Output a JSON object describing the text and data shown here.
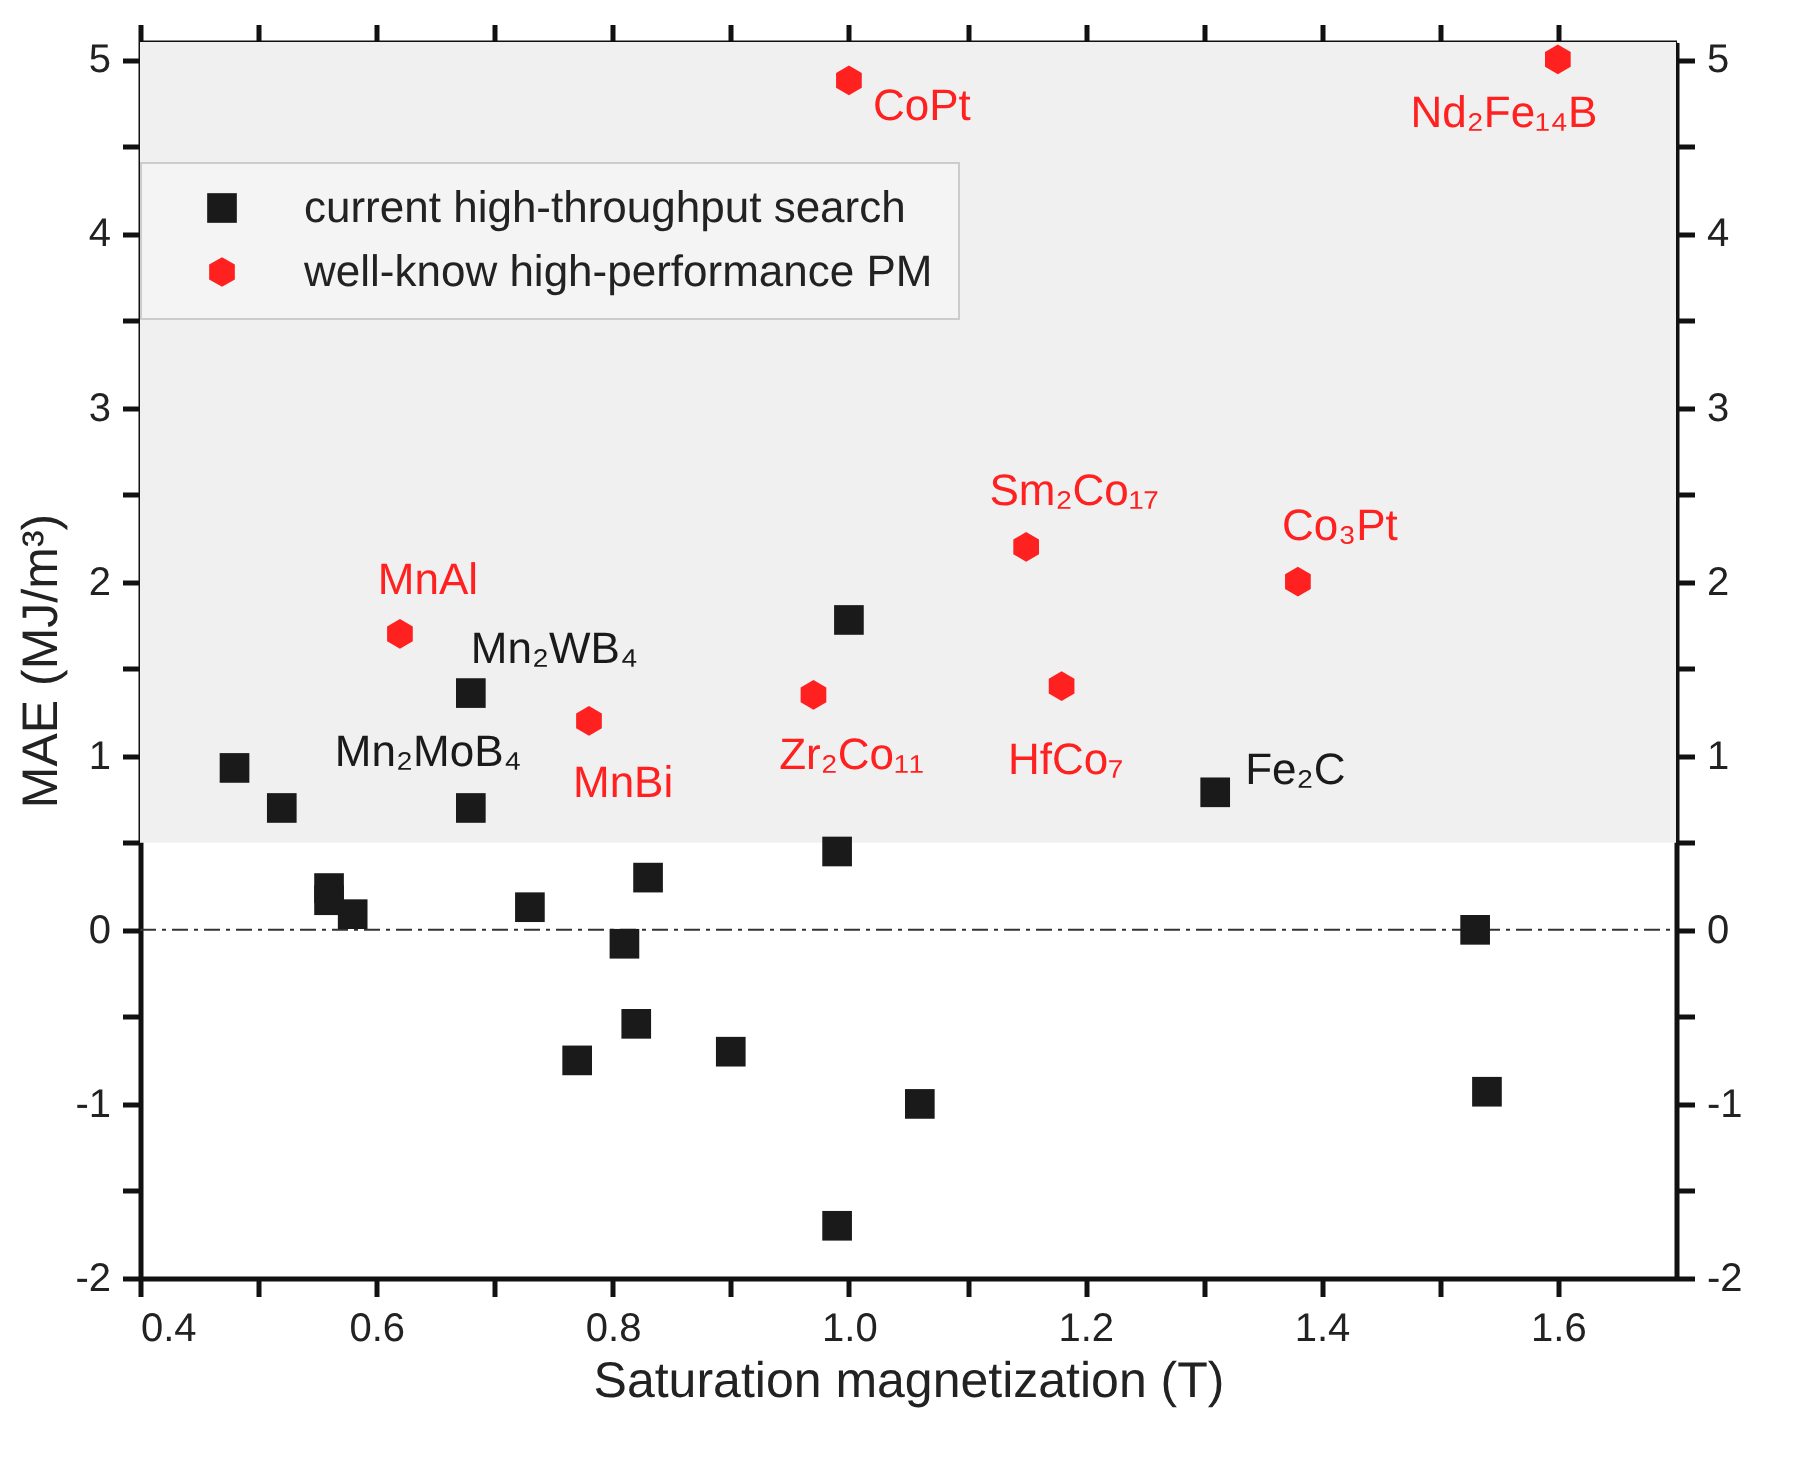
{
  "chart_data": {
    "type": "scatter",
    "xlabel": "Saturation magnetization (T)",
    "ylabel": "MAE (MJ/m³)",
    "xlim": [
      0.4,
      1.7
    ],
    "ylim": [
      -2,
      5.1
    ],
    "y2lim": [
      -2,
      5.1
    ],
    "xticks": [
      {
        "value": 0.4,
        "label": "0.4"
      },
      {
        "value": 0.5,
        "label": null
      },
      {
        "value": 0.6,
        "label": "0.6"
      },
      {
        "value": 0.7,
        "label": null
      },
      {
        "value": 0.8,
        "label": "0.8"
      },
      {
        "value": 0.9,
        "label": null
      },
      {
        "value": 1.0,
        "label": "1.0"
      },
      {
        "value": 1.1,
        "label": null
      },
      {
        "value": 1.2,
        "label": "1.2"
      },
      {
        "value": 1.3,
        "label": null
      },
      {
        "value": 1.4,
        "label": "1.4"
      },
      {
        "value": 1.5,
        "label": null
      },
      {
        "value": 1.6,
        "label": "1.6"
      }
    ],
    "yticks": [
      -2,
      {
        "value": -1.5,
        "label": null
      },
      -1,
      {
        "value": -0.5,
        "label": null
      },
      0,
      {
        "value": 0.5,
        "label": null
      },
      1,
      {
        "value": 1.5,
        "label": null
      },
      2,
      {
        "value": 2.5,
        "label": null
      },
      3,
      {
        "value": 3.5,
        "label": null
      },
      4,
      {
        "value": 4.5,
        "label": null
      },
      5
    ],
    "y2ticks": [
      -2,
      {
        "value": -1.5,
        "label": null
      },
      -1,
      {
        "value": -0.5,
        "label": null
      },
      0,
      {
        "value": 0.5,
        "label": null
      },
      1,
      {
        "value": 1.5,
        "label": null
      },
      2,
      {
        "value": 2.5,
        "label": null
      },
      3,
      {
        "value": 3.5,
        "label": null
      },
      4,
      {
        "value": 4.5,
        "label": null
      },
      5
    ],
    "grid": false,
    "legend": "top left",
    "series": [
      {
        "name": "current high-throughput search",
        "color": "#1a1a1a",
        "marker": "square",
        "x": [
          0.48,
          0.52,
          0.56,
          0.56,
          0.58,
          0.68,
          0.68,
          0.73,
          0.77,
          0.81,
          0.82,
          0.83,
          0.9,
          0.99,
          0.99,
          1.0,
          1.06,
          1.31,
          1.53,
          1.54
        ],
        "values": [
          0.93,
          0.7,
          0.24,
          0.17,
          0.09,
          0.7,
          1.36,
          0.13,
          -0.75,
          -0.08,
          -0.54,
          0.3,
          -0.7,
          0.45,
          -1.7,
          1.78,
          -1.0,
          0.79,
          0.0,
          -0.93
        ]
      },
      {
        "name": "well-know high-performance PM",
        "color": "#ff2020",
        "x": [
          0.62,
          0.78,
          0.97,
          1.0,
          1.15,
          1.18,
          1.38,
          1.6
        ],
        "values": [
          1.7,
          1.2,
          1.35,
          4.88,
          2.2,
          1.4,
          2.0,
          5.0
        ]
      }
    ],
    "ref_lines": [
      {
        "axis": "y",
        "value": 0,
        "color": "#333333",
        "line_style": "dashdot"
      }
    ],
    "bands": [
      {
        "axis": "y",
        "from": 0.5,
        "to": 5.1,
        "color": "#f0f0f0"
      }
    ],
    "annotations": [
      {
        "text": "MnAl",
        "x": 0.62,
        "y": 1.7
      },
      {
        "text": "Mn₂WB₄",
        "x": 0.68,
        "y": 1.36
      },
      {
        "text": "Mn₂MoB₄",
        "x": 0.68,
        "y": 0.7
      },
      {
        "text": "MnBi",
        "x": 0.78,
        "y": 1.2
      },
      {
        "text": "Zr₂Co₁₁",
        "x": 0.97,
        "y": 1.35
      },
      {
        "text": "CoPt",
        "x": 1.0,
        "y": 4.88
      },
      {
        "text": "Sm₂Co₁₇",
        "x": 1.15,
        "y": 2.2
      },
      {
        "text": "Co₃Pt",
        "x": 1.38,
        "y": 2.0
      },
      {
        "text": "HfCo₇",
        "x": 1.18,
        "y": 1.4
      },
      {
        "text": "Fe₂C",
        "x": 1.31,
        "y": 0.79
      },
      {
        "text": "Nd₂Fe₁₄B",
        "x": 1.6,
        "y": 5.0
      }
    ]
  }
}
